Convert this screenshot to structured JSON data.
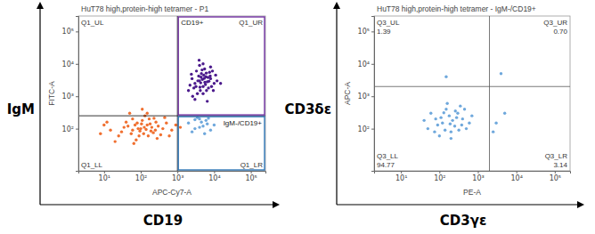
{
  "chart_data": [
    {
      "type": "scatter",
      "log": true,
      "title": "HuT78 high,protein-high tetramer - P1",
      "xlabel": "APC-Cy7-A",
      "ylabel": "FITC-A",
      "x_title": "CD19",
      "y_title": "IgM",
      "xlim": [
        2,
        250000
      ],
      "ylim": [
        5,
        300000
      ],
      "xticks": [
        {
          "value": 10,
          "label": "10¹"
        },
        {
          "value": 100,
          "label": "10²"
        },
        {
          "value": 1000,
          "label": "10³"
        },
        {
          "value": 10000,
          "label": "10⁴"
        },
        {
          "value": 100000,
          "label": "10⁵"
        }
      ],
      "yticks": [
        {
          "value": 100,
          "label": "10²"
        },
        {
          "value": 1000,
          "label": "10³"
        },
        {
          "value": 10000,
          "label": "10⁴"
        },
        {
          "value": 100000,
          "label": "10⁵"
        }
      ],
      "quadrant_lines": {
        "x": 1000,
        "y": 250
      },
      "quadrants": [
        {
          "label": "Q1_UL"
        },
        {
          "label": "Q1_UR"
        },
        {
          "label": "Q1_LL"
        },
        {
          "label": "Q1_LR"
        }
      ],
      "gates": [
        {
          "label": "CD19+",
          "x": [
            1000,
            250000
          ],
          "y": [
            250,
            300000
          ],
          "color": "#7030a0"
        },
        {
          "label": "IgM-/CD19+",
          "x": [
            1000,
            250000
          ],
          "y": [
            5,
            250
          ],
          "color": "#2e75b6"
        }
      ],
      "series": [
        {
          "color": "#f07030",
          "x": [
            30,
            45,
            60,
            80,
            100,
            120,
            150,
            200,
            250,
            60,
            90,
            110,
            140,
            180,
            220,
            300,
            400,
            500,
            35,
            70,
            130,
            160,
            25,
            15,
            10,
            8,
            50,
            75,
            95,
            170,
            260,
            350,
            700,
            900,
            1200,
            40,
            55,
            85,
            105,
            125,
            190,
            230,
            20,
            65,
            150,
            280,
            450,
            600,
            12,
            110
          ],
          "y": [
            80,
            120,
            90,
            150,
            100,
            70,
            130,
            110,
            90,
            200,
            60,
            180,
            95,
            140,
            75,
            120,
            100,
            150,
            110,
            130,
            250,
            60,
            60,
            90,
            130,
            70,
            300,
            45,
            85,
            200,
            160,
            65,
            90,
            130,
            110,
            160,
            70,
            100,
            140,
            110,
            85,
            210,
            40,
            35,
            300,
            50,
            220,
            60,
            160,
            400
          ]
        },
        {
          "color": "#4b1a8c",
          "x": [
            2000,
            3000,
            4000,
            5000,
            6000,
            8000,
            10000,
            3500,
            4500,
            5500,
            7000,
            2500,
            3000,
            6500,
            9000,
            12000,
            4000,
            5000,
            2200,
            3800,
            4800,
            6200,
            7500,
            2800,
            3300,
            4300,
            5200,
            5800,
            6800,
            8500,
            11000,
            15000,
            3600,
            4100,
            4700,
            5400,
            6100,
            7200,
            2600,
            3900,
            5000,
            6500,
            2400,
            4400,
            8000,
            9500,
            3200,
            5600,
            4200,
            7800
          ],
          "y": [
            1500,
            2500,
            3000,
            2000,
            4000,
            3500,
            2500,
            1200,
            5000,
            7000,
            1800,
            3500,
            800,
            2800,
            6000,
            3000,
            9000,
            1200,
            2200,
            4200,
            3300,
            1500,
            5500,
            1800,
            6000,
            2600,
            4500,
            2300,
            3800,
            2000,
            4500,
            2500,
            3000,
            1900,
            6500,
            3600,
            5200,
            2900,
            1000,
            13000,
            10000,
            700,
            4800,
            3900,
            8000,
            1500,
            2000,
            2700,
            1500,
            4200
          ]
        },
        {
          "color": "#6fa8dc",
          "x": [
            2000,
            3000,
            4000,
            5000,
            6000,
            8000,
            3500,
            2500,
            4500,
            7000,
            10000,
            5500,
            3000,
            6500,
            4000
          ],
          "y": [
            150,
            100,
            200,
            120,
            180,
            90,
            220,
            80,
            160,
            210,
            130,
            70,
            190,
            140,
            110
          ]
        }
      ]
    },
    {
      "type": "scatter",
      "log": true,
      "title": "HuT78 high,protein-high tetramer - IgM-/CD19+",
      "xlabel": "PE-A",
      "ylabel": "APC-A",
      "x_title": "CD3γε",
      "y_title": "CD3δε",
      "xlim": [
        2,
        250000
      ],
      "ylim": [
        5,
        300000
      ],
      "xticks": [
        {
          "value": 10,
          "label": "10¹"
        },
        {
          "value": 100,
          "label": "10²"
        },
        {
          "value": 1000,
          "label": "10³"
        },
        {
          "value": 10000,
          "label": "10⁴"
        },
        {
          "value": 100000,
          "label": "10⁵"
        }
      ],
      "yticks": [
        {
          "value": 100,
          "label": "10²"
        },
        {
          "value": 1000,
          "label": "10³"
        },
        {
          "value": 10000,
          "label": "10⁴"
        },
        {
          "value": 100000,
          "label": "10⁵"
        }
      ],
      "quadrant_lines": {
        "x": 2000,
        "y": 2000
      },
      "quadrants": [
        {
          "label": "Q3_UL",
          "value": 1.39,
          "value_label": "1.39"
        },
        {
          "label": "Q3_UR",
          "value": 0.7,
          "value_label": "0.70"
        },
        {
          "label": "Q3_LL",
          "value": 94.77,
          "value_label": "94.77"
        },
        {
          "label": "Q3_LR",
          "value": 3.14,
          "value_label": "3.14"
        }
      ],
      "series": [
        {
          "color": "#6fa8dc",
          "x": [
            50,
            80,
            120,
            200,
            300,
            150,
            250,
            400,
            100,
            180,
            60,
            500,
            350,
            220,
            90,
            140,
            700,
            260,
            40,
            160,
            320,
            450,
            110,
            200,
            600,
            75,
            280,
            130,
            190,
            380,
            3000,
            5000,
            2500,
            150,
            4000
          ],
          "y": [
            100,
            200,
            150,
            80,
            300,
            400,
            120,
            200,
            60,
            250,
            300,
            100,
            500,
            180,
            130,
            90,
            250,
            350,
            180,
            600,
            90,
            400,
            220,
            50,
            150,
            80,
            220,
            310,
            140,
            130,
            150,
            300,
            80,
            4000,
            5000
          ]
        }
      ]
    }
  ]
}
